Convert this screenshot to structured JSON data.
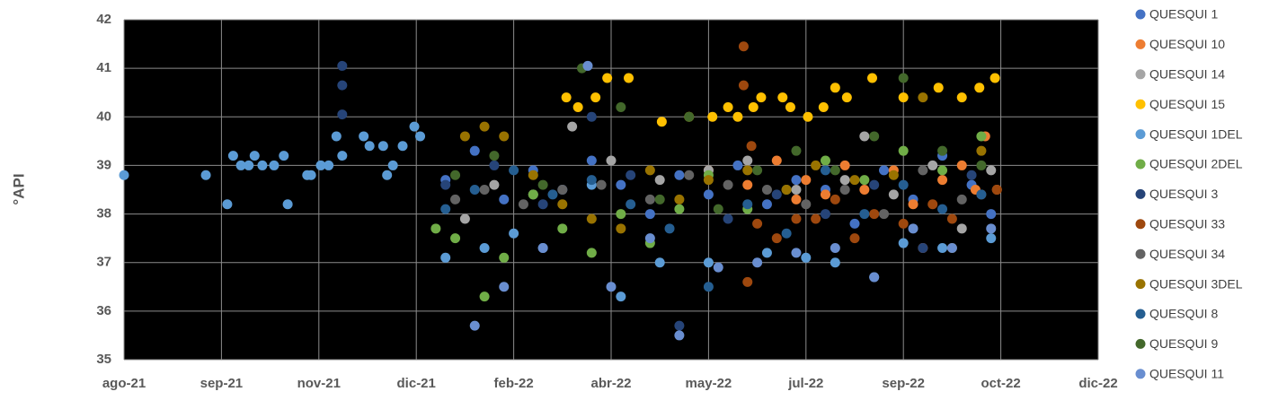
{
  "chart_data": {
    "type": "scatter",
    "y_label": "°API",
    "xlim": [
      44409,
      44909
    ],
    "ylim": [
      35,
      42
    ],
    "xticks": [
      {
        "value": 44409,
        "label": "ago-21"
      },
      {
        "value": 44459,
        "label": "sep-21"
      },
      {
        "value": 44509,
        "label": "nov-21"
      },
      {
        "value": 44559,
        "label": "dic-21"
      },
      {
        "value": 44609,
        "label": "feb-22"
      },
      {
        "value": 44659,
        "label": "abr-22"
      },
      {
        "value": 44709,
        "label": "may-22"
      },
      {
        "value": 44759,
        "label": "jul-22"
      },
      {
        "value": 44809,
        "label": "sep-22"
      },
      {
        "value": 44859,
        "label": "oct-22"
      },
      {
        "value": 44909,
        "label": "dic-22"
      }
    ],
    "yticks": [
      35,
      36,
      37,
      38,
      39,
      40,
      41,
      42
    ],
    "grid": true,
    "legend_position": "right",
    "series": [
      {
        "name": "QUESQUI 1",
        "color": "#4472c4",
        "x": [
          44574,
          44589,
          44604,
          44619,
          44634,
          44649,
          44664,
          44679,
          44694,
          44709,
          44724,
          44739,
          44754,
          44769,
          44784,
          44799,
          44814,
          44829,
          44844,
          44854
        ],
        "values": [
          38.7,
          39.3,
          38.3,
          38.9,
          38.5,
          39.1,
          38.6,
          38.0,
          38.8,
          38.4,
          39.0,
          38.2,
          38.7,
          38.5,
          37.8,
          38.9,
          38.3,
          39.2,
          38.6,
          38.0
        ]
      },
      {
        "name": "QUESQUI 10",
        "color": "#ed7d31",
        "x": [
          44709,
          44729,
          44744,
          44754,
          44759,
          44769,
          44779,
          44789,
          44804,
          44814,
          44819,
          44829,
          44839,
          44846,
          44851,
          44857
        ],
        "values": [
          38.9,
          38.6,
          39.1,
          38.3,
          38.7,
          38.4,
          39.0,
          38.5,
          38.9,
          38.2,
          37.3,
          38.7,
          39.0,
          38.5,
          39.6,
          38.5
        ]
      },
      {
        "name": "QUESQUI 14",
        "color": "#a5a5a5",
        "x": [
          44584,
          44599,
          44619,
          44639,
          44659,
          44684,
          44709,
          44729,
          44754,
          44779,
          44789,
          44804,
          44824,
          44839,
          44854
        ],
        "values": [
          37.9,
          38.6,
          38.4,
          39.8,
          39.1,
          38.7,
          38.9,
          39.1,
          38.5,
          38.7,
          39.6,
          38.4,
          39.0,
          37.7,
          38.9
        ]
      },
      {
        "name": "QUESQUI 15",
        "color": "#ffc000",
        "x": [
          44636,
          44642,
          44651,
          44657,
          44668,
          44685,
          44699,
          44711,
          44719,
          44724,
          44732,
          44736,
          44747,
          44751,
          44760,
          44768,
          44774,
          44780,
          44793,
          44809,
          44827,
          44839,
          44848,
          44856
        ],
        "values": [
          40.4,
          40.2,
          40.4,
          40.8,
          40.8,
          39.9,
          40.0,
          40.0,
          40.2,
          40.0,
          40.2,
          40.4,
          40.4,
          40.2,
          40.0,
          40.2,
          40.6,
          40.4,
          40.8,
          40.4,
          40.6,
          40.4,
          40.6,
          40.8
        ]
      },
      {
        "name": "QUESQUI 1DEL",
        "color": "#5b9bd5",
        "x": [
          44409,
          44451,
          44462,
          44465,
          44469,
          44473,
          44476,
          44480,
          44486,
          44491,
          44493,
          44503,
          44505,
          44510,
          44514,
          44518,
          44521,
          44532,
          44535,
          44542,
          44544,
          44547,
          44552,
          44558,
          44561,
          44574,
          44594,
          44609,
          44624,
          44649,
          44664,
          44684,
          44709,
          44739,
          44759,
          44774,
          44794,
          44809,
          44829,
          44854
        ],
        "values": [
          38.8,
          38.8,
          38.2,
          39.2,
          39,
          39,
          39.2,
          39,
          39,
          39.2,
          38.2,
          38.8,
          38.8,
          39,
          39,
          39.6,
          39.2,
          39.6,
          39.4,
          39.4,
          38.8,
          39,
          39.4,
          39.8,
          39.6,
          37.1,
          37.3,
          37.6,
          37.3,
          38.6,
          36.3,
          37.0,
          37.0,
          37.2,
          37.1,
          37.0,
          36.7,
          37.4,
          37.3,
          37.5
        ]
      },
      {
        "name": "QUESQUI 2DEL",
        "color": "#70ad47",
        "x": [
          44569,
          44579,
          44594,
          44604,
          44619,
          44634,
          44649,
          44664,
          44679,
          44694,
          44709,
          44729,
          44749,
          44769,
          44789,
          44809,
          44829,
          44849
        ],
        "values": [
          37.7,
          37.5,
          36.3,
          37.1,
          38.4,
          37.7,
          37.2,
          38.0,
          37.4,
          38.1,
          38.8,
          38.1,
          38.5,
          39.1,
          38.7,
          39.3,
          38.9,
          39.6
        ]
      },
      {
        "name": "QUESQUI 3",
        "color": "#264478",
        "x": [
          44521,
          44521,
          44521,
          44574,
          44599,
          44624,
          44649,
          44669,
          44694,
          44719,
          44744,
          44769,
          44794,
          44819,
          44844
        ],
        "values": [
          41.05,
          40.65,
          40.05,
          38.6,
          39.0,
          38.2,
          40.0,
          38.8,
          35.7,
          37.9,
          38.4,
          38.0,
          38.6,
          37.3,
          38.8
        ]
      },
      {
        "name": "QUESQUI 33",
        "color": "#9e480e",
        "x": [
          44727,
          44727,
          44729,
          44734,
          44744,
          44754,
          44764,
          44774,
          44784,
          44794,
          44809,
          44824,
          44834,
          44849,
          44857,
          44731
        ],
        "values": [
          41.45,
          40.65,
          36.6,
          37.8,
          37.5,
          37.9,
          37.9,
          38.3,
          37.5,
          38.0,
          37.8,
          38.2,
          37.9,
          38.4,
          38.5,
          39.4
        ]
      },
      {
        "name": "QUESQUI 34",
        "color": "#636363",
        "x": [
          44579,
          44594,
          44614,
          44634,
          44654,
          44679,
          44699,
          44719,
          44739,
          44759,
          44779,
          44799,
          44819,
          44839
        ],
        "values": [
          38.3,
          38.5,
          38.2,
          38.5,
          38.6,
          38.3,
          38.8,
          38.6,
          38.5,
          38.2,
          38.5,
          38.0,
          38.9,
          38.3
        ]
      },
      {
        "name": "QUESQUI 3DEL",
        "color": "#997300",
        "x": [
          44584,
          44594,
          44604,
          44619,
          44634,
          44649,
          44664,
          44679,
          44694,
          44709,
          44729,
          44749,
          44764,
          44784,
          44804,
          44819,
          44834,
          44849
        ],
        "values": [
          39.6,
          39.8,
          39.6,
          38.8,
          38.2,
          37.9,
          37.7,
          38.9,
          38.3,
          38.7,
          38.9,
          38.5,
          39.0,
          38.7,
          38.8,
          40.4,
          37.3,
          39.3
        ]
      },
      {
        "name": "QUESQUI 8",
        "color": "#255e91",
        "x": [
          44574,
          44589,
          44609,
          44629,
          44649,
          44669,
          44689,
          44709,
          44729,
          44749,
          44769,
          44789,
          44809,
          44829,
          44849
        ],
        "values": [
          38.1,
          38.5,
          38.9,
          38.4,
          38.7,
          38.2,
          37.7,
          36.5,
          38.2,
          37.6,
          38.9,
          38.0,
          38.6,
          38.1,
          38.4
        ]
      },
      {
        "name": "QUESQUI 9",
        "color": "#43682b",
        "x": [
          44579,
          44599,
          44624,
          44644,
          44664,
          44684,
          44699,
          44714,
          44734,
          44754,
          44774,
          44794,
          44809,
          44829,
          44849
        ],
        "values": [
          38.8,
          39.2,
          38.6,
          41.0,
          40.2,
          38.3,
          40.0,
          38.1,
          38.9,
          39.3,
          38.9,
          39.6,
          40.8,
          39.3,
          39.0
        ]
      },
      {
        "name": "QUESQUI 11",
        "color": "#698ed0",
        "x": [
          44589,
          44604,
          44624,
          44647,
          44659,
          44679,
          44694,
          44714,
          44734,
          44754,
          44774,
          44794,
          44814,
          44834,
          44854
        ],
        "values": [
          35.7,
          36.5,
          37.3,
          41.05,
          36.5,
          37.5,
          35.5,
          36.9,
          37.0,
          37.2,
          37.3,
          36.7,
          37.7,
          37.3,
          37.7
        ]
      }
    ]
  }
}
